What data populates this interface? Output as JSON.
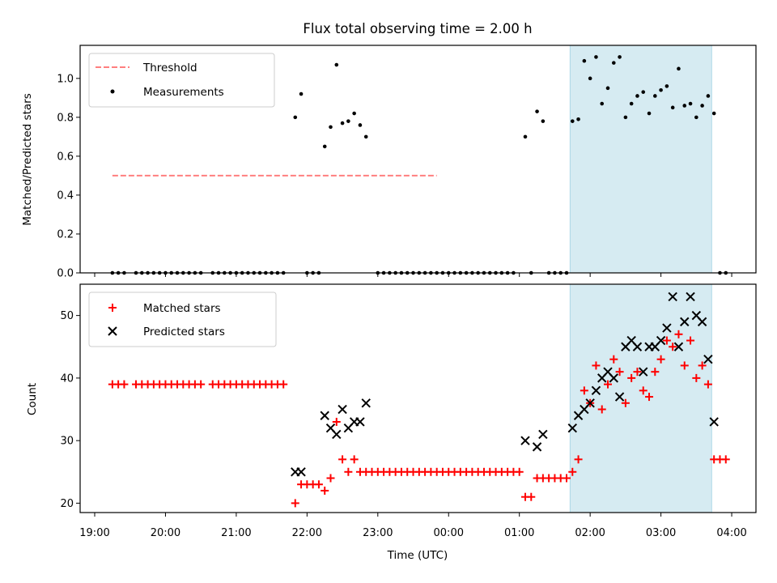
{
  "chart_data": [
    {
      "type": "scatter",
      "title": "Flux total observing time = 2.00 h",
      "ylabel": "Matched/Predicted stars",
      "xlabel": "",
      "ylim": [
        0,
        1.17
      ],
      "yticks": [
        0.0,
        0.2,
        0.4,
        0.6,
        0.8,
        1.0
      ],
      "ytick_labels": [
        "0.0",
        "0.2",
        "0.4",
        "0.6",
        "0.8",
        "1.0"
      ],
      "legend_position": "top-left",
      "highlight_span": [
        "01:43",
        "03:43"
      ],
      "threshold": {
        "name": "Threshold",
        "value": 0.5,
        "x_range": [
          "19:15",
          "23:50"
        ],
        "color": "#ff7f7f",
        "dash": true
      },
      "series": [
        {
          "name": "Measurements",
          "color": "#000000",
          "points": [
            [
              "19:15",
              0
            ],
            [
              "19:20",
              0
            ],
            [
              "19:25",
              0
            ],
            [
              "19:35",
              0
            ],
            [
              "19:40",
              0
            ],
            [
              "19:45",
              0
            ],
            [
              "19:50",
              0
            ],
            [
              "19:55",
              0
            ],
            [
              "20:00",
              0
            ],
            [
              "20:05",
              0
            ],
            [
              "20:10",
              0
            ],
            [
              "20:15",
              0
            ],
            [
              "20:20",
              0
            ],
            [
              "20:25",
              0
            ],
            [
              "20:30",
              0
            ],
            [
              "20:40",
              0
            ],
            [
              "20:45",
              0
            ],
            [
              "20:50",
              0
            ],
            [
              "20:55",
              0
            ],
            [
              "21:00",
              0
            ],
            [
              "21:05",
              0
            ],
            [
              "21:10",
              0
            ],
            [
              "21:15",
              0
            ],
            [
              "21:20",
              0
            ],
            [
              "21:25",
              0
            ],
            [
              "21:30",
              0
            ],
            [
              "21:35",
              0
            ],
            [
              "21:40",
              0
            ],
            [
              "21:50",
              0.8
            ],
            [
              "21:55",
              0.92
            ],
            [
              "22:00",
              0
            ],
            [
              "22:05",
              0
            ],
            [
              "22:10",
              0
            ],
            [
              "22:15",
              0.65
            ],
            [
              "22:20",
              0.75
            ],
            [
              "22:25",
              1.07
            ],
            [
              "22:30",
              0.77
            ],
            [
              "22:35",
              0.78
            ],
            [
              "22:40",
              0.82
            ],
            [
              "22:45",
              0.76
            ],
            [
              "22:50",
              0.7
            ],
            [
              "23:00",
              0
            ],
            [
              "23:05",
              0
            ],
            [
              "23:10",
              0
            ],
            [
              "23:15",
              0
            ],
            [
              "23:20",
              0
            ],
            [
              "23:25",
              0
            ],
            [
              "23:30",
              0
            ],
            [
              "23:35",
              0
            ],
            [
              "23:40",
              0
            ],
            [
              "23:45",
              0
            ],
            [
              "23:50",
              0
            ],
            [
              "23:55",
              0
            ],
            [
              "00:00",
              0
            ],
            [
              "00:05",
              0
            ],
            [
              "00:10",
              0
            ],
            [
              "00:15",
              0
            ],
            [
              "00:20",
              0
            ],
            [
              "00:25",
              0
            ],
            [
              "00:30",
              0
            ],
            [
              "00:35",
              0
            ],
            [
              "00:40",
              0
            ],
            [
              "00:45",
              0
            ],
            [
              "00:50",
              0
            ],
            [
              "00:55",
              0
            ],
            [
              "01:05",
              0.7
            ],
            [
              "01:10",
              0
            ],
            [
              "01:15",
              0.83
            ],
            [
              "01:20",
              0.78
            ],
            [
              "01:25",
              0
            ],
            [
              "01:30",
              0
            ],
            [
              "01:35",
              0
            ],
            [
              "01:40",
              0
            ],
            [
              "01:45",
              0.78
            ],
            [
              "01:50",
              0.79
            ],
            [
              "01:55",
              1.09
            ],
            [
              "02:00",
              1.0
            ],
            [
              "02:05",
              1.11
            ],
            [
              "02:10",
              0.87
            ],
            [
              "02:15",
              0.95
            ],
            [
              "02:20",
              1.08
            ],
            [
              "02:25",
              1.11
            ],
            [
              "02:30",
              0.8
            ],
            [
              "02:35",
              0.87
            ],
            [
              "02:40",
              0.91
            ],
            [
              "02:45",
              0.93
            ],
            [
              "02:50",
              0.82
            ],
            [
              "02:55",
              0.91
            ],
            [
              "03:00",
              0.94
            ],
            [
              "03:05",
              0.96
            ],
            [
              "03:10",
              0.85
            ],
            [
              "03:15",
              1.05
            ],
            [
              "03:20",
              0.86
            ],
            [
              "03:25",
              0.87
            ],
            [
              "03:30",
              0.8
            ],
            [
              "03:35",
              0.86
            ],
            [
              "03:40",
              0.91
            ],
            [
              "03:45",
              0.82
            ],
            [
              "03:50",
              0
            ],
            [
              "03:55",
              0
            ]
          ]
        }
      ]
    },
    {
      "type": "scatter",
      "title": "",
      "ylabel": "Count",
      "xlabel": "Time (UTC)",
      "ylim": [
        18.5,
        55
      ],
      "yticks": [
        20,
        30,
        40,
        50
      ],
      "ytick_labels": [
        "20",
        "30",
        "40",
        "50"
      ],
      "xticks": [
        "19:00",
        "20:00",
        "21:00",
        "22:00",
        "23:00",
        "00:00",
        "01:00",
        "02:00",
        "03:00",
        "04:00"
      ],
      "legend_position": "top-left",
      "highlight_span": [
        "01:43",
        "03:43"
      ],
      "series": [
        {
          "name": "Matched stars",
          "marker": "plus",
          "color": "#ff0000",
          "points": [
            [
              "19:15",
              39
            ],
            [
              "19:20",
              39
            ],
            [
              "19:25",
              39
            ],
            [
              "19:35",
              39
            ],
            [
              "19:40",
              39
            ],
            [
              "19:45",
              39
            ],
            [
              "19:50",
              39
            ],
            [
              "19:55",
              39
            ],
            [
              "20:00",
              39
            ],
            [
              "20:05",
              39
            ],
            [
              "20:10",
              39
            ],
            [
              "20:15",
              39
            ],
            [
              "20:20",
              39
            ],
            [
              "20:25",
              39
            ],
            [
              "20:30",
              39
            ],
            [
              "20:40",
              39
            ],
            [
              "20:45",
              39
            ],
            [
              "20:50",
              39
            ],
            [
              "20:55",
              39
            ],
            [
              "21:00",
              39
            ],
            [
              "21:05",
              39
            ],
            [
              "21:10",
              39
            ],
            [
              "21:15",
              39
            ],
            [
              "21:20",
              39
            ],
            [
              "21:25",
              39
            ],
            [
              "21:30",
              39
            ],
            [
              "21:35",
              39
            ],
            [
              "21:40",
              39
            ],
            [
              "21:50",
              20
            ],
            [
              "21:55",
              23
            ],
            [
              "22:00",
              23
            ],
            [
              "22:05",
              23
            ],
            [
              "22:10",
              23
            ],
            [
              "22:15",
              22
            ],
            [
              "22:20",
              24
            ],
            [
              "22:25",
              33
            ],
            [
              "22:30",
              27
            ],
            [
              "22:35",
              25
            ],
            [
              "22:40",
              27
            ],
            [
              "22:45",
              25
            ],
            [
              "22:50",
              25
            ],
            [
              "22:55",
              25
            ],
            [
              "23:00",
              25
            ],
            [
              "23:05",
              25
            ],
            [
              "23:10",
              25
            ],
            [
              "23:15",
              25
            ],
            [
              "23:20",
              25
            ],
            [
              "23:25",
              25
            ],
            [
              "23:30",
              25
            ],
            [
              "23:35",
              25
            ],
            [
              "23:40",
              25
            ],
            [
              "23:45",
              25
            ],
            [
              "23:50",
              25
            ],
            [
              "23:55",
              25
            ],
            [
              "00:00",
              25
            ],
            [
              "00:05",
              25
            ],
            [
              "00:10",
              25
            ],
            [
              "00:15",
              25
            ],
            [
              "00:20",
              25
            ],
            [
              "00:25",
              25
            ],
            [
              "00:30",
              25
            ],
            [
              "00:35",
              25
            ],
            [
              "00:40",
              25
            ],
            [
              "00:45",
              25
            ],
            [
              "00:50",
              25
            ],
            [
              "00:55",
              25
            ],
            [
              "01:00",
              25
            ],
            [
              "01:05",
              21
            ],
            [
              "01:10",
              21
            ],
            [
              "01:15",
              24
            ],
            [
              "01:20",
              24
            ],
            [
              "01:25",
              24
            ],
            [
              "01:30",
              24
            ],
            [
              "01:35",
              24
            ],
            [
              "01:40",
              24
            ],
            [
              "01:45",
              25
            ],
            [
              "01:50",
              27
            ],
            [
              "01:55",
              38
            ],
            [
              "02:00",
              36
            ],
            [
              "02:05",
              42
            ],
            [
              "02:10",
              35
            ],
            [
              "02:15",
              39
            ],
            [
              "02:20",
              43
            ],
            [
              "02:25",
              41
            ],
            [
              "02:30",
              36
            ],
            [
              "02:35",
              40
            ],
            [
              "02:40",
              41
            ],
            [
              "02:45",
              38
            ],
            [
              "02:50",
              37
            ],
            [
              "02:55",
              41
            ],
            [
              "03:00",
              43
            ],
            [
              "03:05",
              46
            ],
            [
              "03:10",
              45
            ],
            [
              "03:15",
              47
            ],
            [
              "03:20",
              42
            ],
            [
              "03:25",
              46
            ],
            [
              "03:30",
              40
            ],
            [
              "03:35",
              42
            ],
            [
              "03:40",
              39
            ],
            [
              "03:45",
              27
            ],
            [
              "03:50",
              27
            ],
            [
              "03:55",
              27
            ]
          ]
        },
        {
          "name": "Predicted stars",
          "marker": "x",
          "color": "#000000",
          "points": [
            [
              "21:50",
              25
            ],
            [
              "21:55",
              25
            ],
            [
              "22:15",
              34
            ],
            [
              "22:20",
              32
            ],
            [
              "22:25",
              31
            ],
            [
              "22:30",
              35
            ],
            [
              "22:35",
              32
            ],
            [
              "22:40",
              33
            ],
            [
              "22:45",
              33
            ],
            [
              "22:50",
              36
            ],
            [
              "01:05",
              30
            ],
            [
              "01:15",
              29
            ],
            [
              "01:20",
              31
            ],
            [
              "01:45",
              32
            ],
            [
              "01:50",
              34
            ],
            [
              "01:55",
              35
            ],
            [
              "02:00",
              36
            ],
            [
              "02:05",
              38
            ],
            [
              "02:10",
              40
            ],
            [
              "02:15",
              41
            ],
            [
              "02:20",
              40
            ],
            [
              "02:25",
              37
            ],
            [
              "02:30",
              45
            ],
            [
              "02:35",
              46
            ],
            [
              "02:40",
              45
            ],
            [
              "02:45",
              41
            ],
            [
              "02:50",
              45
            ],
            [
              "02:55",
              45
            ],
            [
              "03:00",
              46
            ],
            [
              "03:05",
              48
            ],
            [
              "03:10",
              53
            ],
            [
              "03:15",
              45
            ],
            [
              "03:20",
              49
            ],
            [
              "03:25",
              53
            ],
            [
              "03:30",
              50
            ],
            [
              "03:35",
              49
            ],
            [
              "03:40",
              43
            ],
            [
              "03:45",
              33
            ]
          ]
        }
      ]
    }
  ]
}
